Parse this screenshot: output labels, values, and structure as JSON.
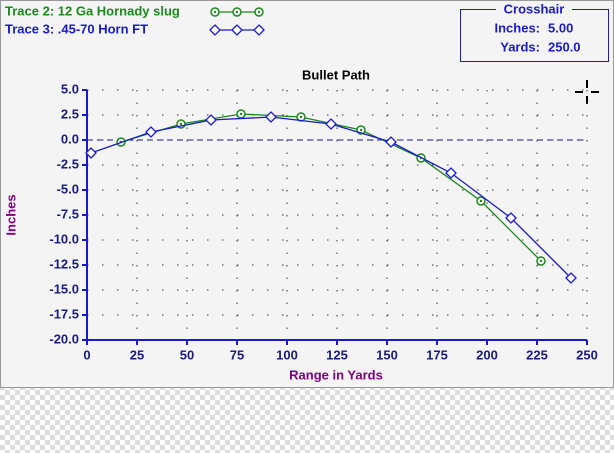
{
  "chart_data": {
    "type": "line",
    "title": "Bullet Path",
    "xlabel": "Range in Yards",
    "ylabel": "Inches",
    "xlim": [
      0,
      250
    ],
    "xticks": [
      0,
      25,
      50,
      75,
      100,
      125,
      150,
      175,
      200,
      225,
      250
    ],
    "ylim": [
      -20,
      5
    ],
    "yticks": [
      {
        "value": 5,
        "label": "5.0"
      },
      {
        "value": 2.5,
        "label": "2.5"
      },
      {
        "value": 0,
        "label": "0.0"
      },
      {
        "value": -2.5,
        "label": "-2.5"
      },
      {
        "value": -5,
        "label": "-5.0"
      },
      {
        "value": -7.5,
        "label": "-7.5"
      },
      {
        "value": -10,
        "label": "-10.0"
      },
      {
        "value": -12.5,
        "label": "-12.5"
      },
      {
        "value": -15,
        "label": "-15.0"
      },
      {
        "value": -17.5,
        "label": "-17.5"
      },
      {
        "value": -20,
        "label": "-20.0"
      }
    ],
    "grid": true,
    "series": [
      {
        "name": "Trace 2:  12 Ga Hornady slug",
        "color": "#1a8a1a",
        "marker": "circle",
        "x": [
          17,
          47,
          77,
          107,
          137,
          167,
          197,
          227
        ],
        "values": [
          -0.2,
          1.6,
          2.6,
          2.3,
          1.0,
          -1.8,
          -6.1,
          -12.1
        ]
      },
      {
        "name": "Trace 3:  .45-70 Horn FT",
        "color": "#1a1acc",
        "marker": "diamond",
        "x": [
          2,
          32,
          62,
          92,
          122,
          152,
          182,
          212,
          242
        ],
        "values": [
          -1.3,
          0.8,
          2.0,
          2.3,
          1.6,
          -0.2,
          -3.3,
          -7.8,
          -13.8
        ]
      }
    ]
  },
  "crosshair": {
    "title": "Crosshair",
    "inches_label": "Inches:",
    "inches": "5.00",
    "yards_label": "Yards:",
    "yards": "250.0"
  }
}
